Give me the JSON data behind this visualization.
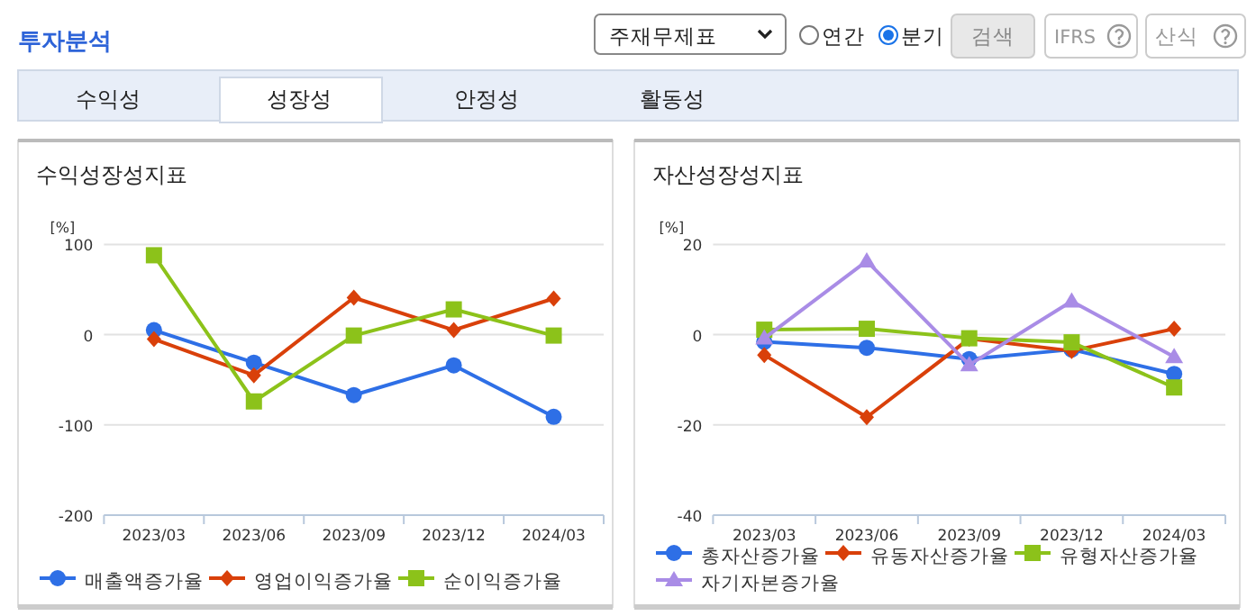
{
  "chart_data": [
    {
      "type": "other",
      "title": "투자분석",
      "annotations": [
        "주재무제표",
        "연간",
        "분기",
        "검색",
        "IFRS",
        "산식",
        "수익성",
        "성장성",
        "안정성",
        "활동성"
      ]
    },
    {
      "type": "line",
      "title": "수익성장성지표",
      "ylabel": "[%]",
      "categories": [
        "2023/03",
        "2023/06",
        "2023/09",
        "2023/12",
        "2024/03"
      ],
      "ylim": [
        -200,
        100
      ],
      "yticks": [
        -200,
        -100,
        0,
        100
      ],
      "grid": "y",
      "legend": "bottom",
      "series": [
        {
          "name": "매출액증가율",
          "color": "#2e6fe6",
          "marker": "circle",
          "values": [
            5,
            -31,
            -67,
            -34,
            -91
          ]
        },
        {
          "name": "영업이익증가율",
          "color": "#d9400a",
          "marker": "diamond",
          "values": [
            -5,
            -45,
            41,
            5,
            40
          ]
        },
        {
          "name": "순이익증가율",
          "color": "#8cc21a",
          "marker": "square",
          "values": [
            88,
            -74,
            -1,
            28,
            -1
          ]
        }
      ]
    },
    {
      "type": "line",
      "title": "자산성장성지표",
      "ylabel": "[%]",
      "categories": [
        "2023/03",
        "2023/06",
        "2023/09",
        "2023/12",
        "2024/03"
      ],
      "ylim": [
        -40,
        20
      ],
      "yticks": [
        -40,
        -20,
        0,
        20
      ],
      "grid": "y",
      "legend": "bottom",
      "series": [
        {
          "name": "총자산증가율",
          "color": "#2e6fe6",
          "marker": "circle",
          "values": [
            -1.6,
            -2.9,
            -5.4,
            -3.3,
            -8.7
          ]
        },
        {
          "name": "유동자산증가율",
          "color": "#d9400a",
          "marker": "diamond",
          "values": [
            -4.5,
            -18.3,
            -0.9,
            -3.6,
            1.3
          ]
        },
        {
          "name": "유형자산증가율",
          "color": "#8cc21a",
          "marker": "square",
          "values": [
            1.1,
            1.3,
            -0.8,
            -1.7,
            -11.7
          ]
        },
        {
          "name": "자기자본증가율",
          "color": "#a98ce6",
          "marker": "triangle",
          "values": [
            -0.8,
            16.3,
            -6.7,
            7.4,
            -4.9
          ]
        }
      ]
    }
  ]
}
